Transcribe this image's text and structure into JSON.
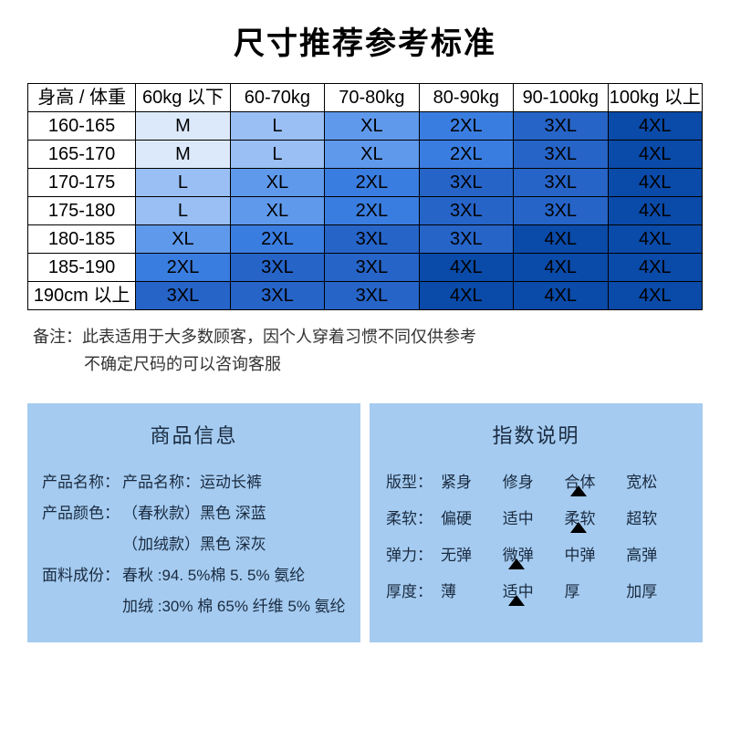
{
  "title": "尺寸推荐参考标准",
  "size_table": {
    "header_row": [
      "身高 / 体重",
      "60kg 以下",
      "60-70kg",
      "70-80kg",
      "80-90kg",
      "90-100kg",
      "100kg 以上"
    ],
    "rows": [
      {
        "label": "160-165",
        "cells": [
          "M",
          "L",
          "XL",
          "2XL",
          "3XL",
          "4XL"
        ],
        "colors": [
          "#dce9fb",
          "#99bff4",
          "#5f99eb",
          "#3a7de0",
          "#2664c8",
          "#0a4aa8"
        ]
      },
      {
        "label": "165-170",
        "cells": [
          "M",
          "L",
          "XL",
          "2XL",
          "3XL",
          "4XL"
        ],
        "colors": [
          "#dce9fb",
          "#99bff4",
          "#5f99eb",
          "#3a7de0",
          "#2664c8",
          "#0a4aa8"
        ]
      },
      {
        "label": "170-175",
        "cells": [
          "L",
          "XL",
          "2XL",
          "3XL",
          "3XL",
          "4XL"
        ],
        "colors": [
          "#99bff4",
          "#5f99eb",
          "#3a7de0",
          "#2664c8",
          "#2664c8",
          "#0a4aa8"
        ]
      },
      {
        "label": "175-180",
        "cells": [
          "L",
          "XL",
          "2XL",
          "3XL",
          "3XL",
          "4XL"
        ],
        "colors": [
          "#99bff4",
          "#5f99eb",
          "#3a7de0",
          "#2664c8",
          "#2664c8",
          "#0a4aa8"
        ]
      },
      {
        "label": "180-185",
        "cells": [
          "XL",
          "2XL",
          "3XL",
          "3XL",
          "4XL",
          "4XL"
        ],
        "colors": [
          "#5f99eb",
          "#3a7de0",
          "#2664c8",
          "#2664c8",
          "#0a4aa8",
          "#0a4aa8"
        ]
      },
      {
        "label": "185-190",
        "cells": [
          "2XL",
          "3XL",
          "3XL",
          "4XL",
          "4XL",
          "4XL"
        ],
        "colors": [
          "#3a7de0",
          "#2664c8",
          "#2664c8",
          "#0a4aa8",
          "#0a4aa8",
          "#0a4aa8"
        ]
      },
      {
        "label": "190cm 以上",
        "cells": [
          "3XL",
          "3XL",
          "3XL",
          "4XL",
          "4XL",
          "4XL"
        ],
        "colors": [
          "#2664c8",
          "#2664c8",
          "#2664c8",
          "#0a4aa8",
          "#0a4aa8",
          "#0a4aa8"
        ]
      }
    ],
    "col_widths_pct": [
      16,
      14,
      14,
      14,
      14,
      14,
      14
    ]
  },
  "notes": {
    "line1": "备注：此表适用于大多数顾客，因个人穿着习惯不同仅供参考",
    "line2": "不确定尺码的可以咨询客服"
  },
  "product_info": {
    "title": "商品信息",
    "rows": [
      {
        "label": "产品名称：",
        "value": "产品名称：运动长裤"
      },
      {
        "label": "产品颜色：",
        "value": "（春秋款）黑色  深蓝"
      },
      {
        "label": "",
        "value": "（加绒款）黑色  深灰",
        "indent": true
      },
      {
        "label": "面料成份：",
        "value": "春秋 :94. 5%棉 5. 5% 氨纶"
      },
      {
        "label": "",
        "value": "加绒 :30% 棉 65% 纤维 5% 氨纶",
        "indent": true
      }
    ]
  },
  "index_info": {
    "title": "指数说明",
    "rows": [
      {
        "label": "版型：",
        "options": [
          "紧身",
          "修身",
          "合体",
          "宽松"
        ],
        "selected": 2
      },
      {
        "label": "柔软：",
        "options": [
          "偏硬",
          "适中",
          "柔软",
          "超软"
        ],
        "selected": 2
      },
      {
        "label": "弹力：",
        "options": [
          "无弹",
          "微弹",
          "中弹",
          "高弹"
        ],
        "selected": 1
      },
      {
        "label": "厚度：",
        "options": [
          "薄",
          "适中",
          "厚",
          "加厚"
        ],
        "selected": 1
      }
    ]
  },
  "colors": {
    "panel_bg": "#a5cbf0",
    "text_dark": "#1a2b40"
  }
}
